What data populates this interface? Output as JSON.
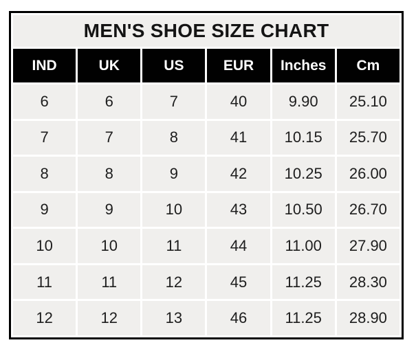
{
  "title": "MEN'S SHOE SIZE CHART",
  "chart_data": {
    "type": "table",
    "title": "MEN'S SHOE SIZE CHART",
    "columns": [
      "IND",
      "UK",
      "US",
      "EUR",
      "Inches",
      "Cm"
    ],
    "rows": [
      [
        "6",
        "6",
        "7",
        "40",
        "9.90",
        "25.10"
      ],
      [
        "7",
        "7",
        "8",
        "41",
        "10.15",
        "25.70"
      ],
      [
        "8",
        "8",
        "9",
        "42",
        "10.25",
        "26.00"
      ],
      [
        "9",
        "9",
        "10",
        "43",
        "10.50",
        "26.70"
      ],
      [
        "10",
        "10",
        "11",
        "44",
        "11.00",
        "27.90"
      ],
      [
        "11",
        "11",
        "12",
        "45",
        "11.25",
        "28.30"
      ],
      [
        "12",
        "12",
        "13",
        "46",
        "11.25",
        "28.90"
      ]
    ],
    "layout": {
      "legend": "none",
      "grid": "white cell gaps on light-gray cells",
      "header_style": "black background, white bold text",
      "outer_border": "black"
    }
  },
  "colors": {
    "page_bg": "#ffffff",
    "outer_border": "#000000",
    "header_bg": "#010101",
    "header_text": "#ffffff",
    "cell_bg": "#f0efed",
    "cell_text": "#1d1d1d",
    "title_text": "#141414"
  }
}
